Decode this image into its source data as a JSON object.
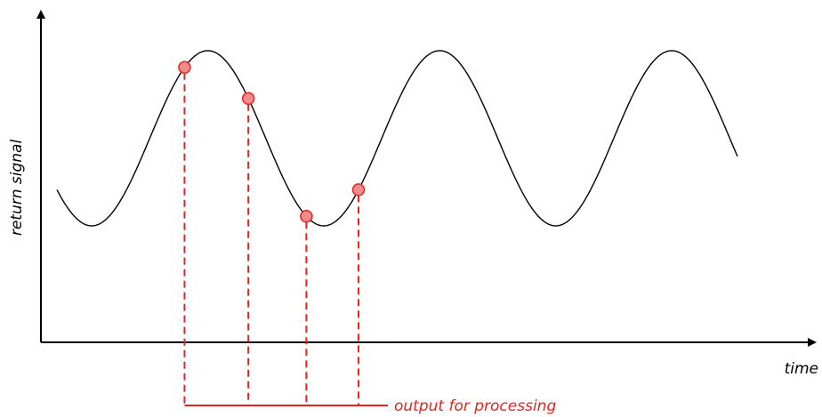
{
  "labels": {
    "y_axis": "return signal",
    "x_axis": "time",
    "output": "output for processing"
  },
  "colors": {
    "axis": "#000000",
    "wave": "#000000",
    "sample_fill": "#f28b8b",
    "sample_stroke": "#e8231e",
    "accent": "#e8231e"
  },
  "wave": {
    "cycles_shown": 3,
    "phase_start_deg": 216,
    "phase_end_deg": 1272
  },
  "samples": [
    {
      "phase_deg": 414
    },
    {
      "phase_deg": 513
    },
    {
      "phase_deg": 603
    },
    {
      "phase_deg": 684
    }
  ]
}
